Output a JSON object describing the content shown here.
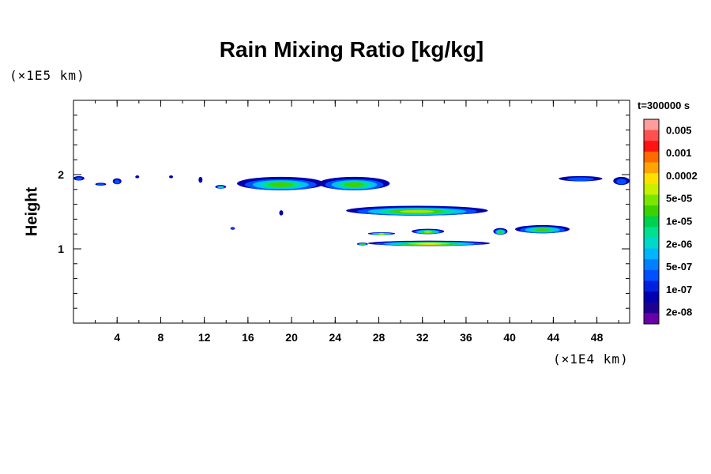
{
  "chart_data": {
    "type": "heatmap",
    "title": "Rain Mixing Ratio [kg/kg]",
    "xlabel": "",
    "ylabel": "Height",
    "x_unit": "(×1E4 km)",
    "y_unit": "(×1E5 km)",
    "time_label": "t=300000 s",
    "xlim": [
      0,
      51
    ],
    "ylim": [
      0,
      3
    ],
    "x_ticks": [
      4,
      8,
      12,
      16,
      20,
      24,
      28,
      32,
      36,
      40,
      44,
      48
    ],
    "y_ticks": [
      1,
      2
    ],
    "x_minor_step": 2,
    "y_minor_step": 0.2,
    "colorbar": {
      "labels": [
        "0.005",
        "0.001",
        "0.0002",
        "5e-05",
        "1e-05",
        "2e-06",
        "5e-07",
        "1e-07",
        "2e-08"
      ],
      "colors_top_to_bottom": [
        "#ff9c9c",
        "#ff5050",
        "#ff1414",
        "#ff6a00",
        "#ffa400",
        "#ffe000",
        "#c8f000",
        "#7ae600",
        "#3cd200",
        "#00d050",
        "#00e090",
        "#00d8c8",
        "#00b4ff",
        "#0080ff",
        "#0050ff",
        "#0020e0",
        "#0000b0",
        "#200090",
        "#6800a8"
      ]
    },
    "levels": [
      {
        "name": "2e-08",
        "color": "#0000b0"
      },
      {
        "name": "1e-07",
        "color": "#0050ff"
      },
      {
        "name": "5e-07",
        "color": "#00c0ff"
      },
      {
        "name": "2e-06",
        "color": "#00e090"
      },
      {
        "name": "1e-05",
        "color": "#3cd200"
      },
      {
        "name": "5e-05",
        "color": "#a0e800"
      },
      {
        "name": "0.0002",
        "color": "#ffe000"
      },
      {
        "name": "0.001",
        "color": "#ffa400"
      }
    ],
    "features": [
      {
        "x0": 0.0,
        "x1": 1.0,
        "y0": 1.92,
        "y1": 1.98,
        "peak": 1
      },
      {
        "x0": 2.0,
        "x1": 3.0,
        "y0": 1.85,
        "y1": 1.89,
        "peak": 1
      },
      {
        "x0": 3.6,
        "x1": 4.4,
        "y0": 1.87,
        "y1": 1.95,
        "peak": 1
      },
      {
        "x0": 5.7,
        "x1": 6.0,
        "y0": 1.96,
        "y1": 1.98,
        "peak": 0
      },
      {
        "x0": 8.8,
        "x1": 9.1,
        "y0": 1.96,
        "y1": 1.98,
        "peak": 0
      },
      {
        "x0": 11.5,
        "x1": 11.8,
        "y0": 1.89,
        "y1": 1.97,
        "peak": 0
      },
      {
        "x0": 13.0,
        "x1": 14.0,
        "y0": 1.81,
        "y1": 1.86,
        "peak": 3
      },
      {
        "x0": 15.0,
        "x1": 23.0,
        "y0": 1.79,
        "y1": 1.97,
        "peak": 4
      },
      {
        "x0": 22.5,
        "x1": 29.0,
        "y0": 1.79,
        "y1": 1.97,
        "peak": 4
      },
      {
        "x0": 25.0,
        "x1": 38.0,
        "y0": 1.45,
        "y1": 1.58,
        "peak": 5
      },
      {
        "x0": 18.9,
        "x1": 19.2,
        "y0": 1.45,
        "y1": 1.52,
        "peak": 0
      },
      {
        "x0": 14.4,
        "x1": 14.8,
        "y0": 1.26,
        "y1": 1.29,
        "peak": 1
      },
      {
        "x0": 27.0,
        "x1": 38.2,
        "y0": 1.04,
        "y1": 1.11,
        "peak": 6
      },
      {
        "x0": 27.0,
        "x1": 29.5,
        "y0": 1.19,
        "y1": 1.22,
        "peak": 5
      },
      {
        "x0": 31.0,
        "x1": 34.0,
        "y0": 1.2,
        "y1": 1.27,
        "peak": 5
      },
      {
        "x0": 26.0,
        "x1": 27.0,
        "y0": 1.05,
        "y1": 1.08,
        "peak": 4
      },
      {
        "x0": 38.5,
        "x1": 39.8,
        "y0": 1.19,
        "y1": 1.28,
        "peak": 4
      },
      {
        "x0": 40.5,
        "x1": 45.5,
        "y0": 1.21,
        "y1": 1.32,
        "peak": 4
      },
      {
        "x0": 44.5,
        "x1": 48.5,
        "y0": 1.91,
        "y1": 1.98,
        "peak": 1
      },
      {
        "x0": 49.5,
        "x1": 51.0,
        "y0": 1.86,
        "y1": 1.97,
        "peak": 1
      }
    ]
  }
}
